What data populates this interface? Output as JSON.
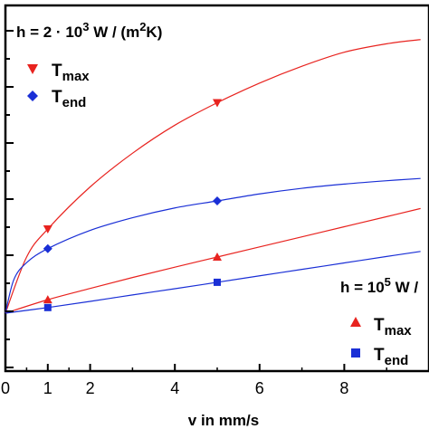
{
  "chart_data": {
    "type": "line",
    "xlabel": "v in mm/s",
    "ylabel": "",
    "xlim": [
      0,
      10
    ],
    "ylim": [
      0,
      10
    ],
    "x_ticks": [
      "0",
      "1",
      "2",
      "4",
      "6",
      "8"
    ],
    "x_tick_values": [
      0,
      1,
      2,
      4,
      6,
      8
    ],
    "y_tick_values": [
      0,
      1.9,
      3.9,
      5.9,
      7.9,
      9.8
    ],
    "annotations": {
      "case_top": {
        "prefix": "h = 2 · 10",
        "exponent": "3",
        "suffix": " W / (m",
        "suffix_exp": "2",
        "suffix_end": "K)"
      },
      "case_bottom": {
        "prefix": "h = 10",
        "exponent": "5",
        "suffix": " W /"
      }
    },
    "legends": [
      {
        "entries": [
          {
            "name_main": "T",
            "name_sub": "max",
            "marker": "triangle-down",
            "color": "#e8231f"
          },
          {
            "name_main": "T",
            "name_sub": "end",
            "marker": "diamond",
            "color": "#1a2fd6"
          }
        ]
      },
      {
        "entries": [
          {
            "name_main": "T",
            "name_sub": "max",
            "marker": "triangle-up",
            "color": "#e8231f"
          },
          {
            "name_main": "T",
            "name_sub": "end",
            "marker": "square",
            "color": "#1a2fd6"
          }
        ]
      }
    ],
    "series": [
      {
        "group": "h = 2·10^3",
        "legend": "Tmax",
        "color": "#e8231f",
        "marker": "triangle-down",
        "points": [
          {
            "x": 0,
            "y": 0
          },
          {
            "x": 1,
            "y": 3.0
          },
          {
            "x": 5,
            "y": 7.5
          }
        ],
        "curve": [
          {
            "x": 0,
            "y": 0
          },
          {
            "x": 0.5,
            "y": 2.0
          },
          {
            "x": 1,
            "y": 3.0
          },
          {
            "x": 2,
            "y": 4.5
          },
          {
            "x": 3,
            "y": 5.7
          },
          {
            "x": 4,
            "y": 6.7
          },
          {
            "x": 5,
            "y": 7.5
          },
          {
            "x": 6,
            "y": 8.2
          },
          {
            "x": 7,
            "y": 8.8
          },
          {
            "x": 8,
            "y": 9.3
          },
          {
            "x": 9,
            "y": 9.6
          },
          {
            "x": 9.8,
            "y": 9.75
          }
        ]
      },
      {
        "group": "h = 2·10^3",
        "legend": "Tend",
        "color": "#1a2fd6",
        "marker": "diamond",
        "points": [
          {
            "x": 0,
            "y": 0
          },
          {
            "x": 1,
            "y": 2.3
          },
          {
            "x": 5,
            "y": 4.0
          }
        ],
        "curve": [
          {
            "x": 0,
            "y": 0
          },
          {
            "x": 0.2,
            "y": 1.2
          },
          {
            "x": 0.5,
            "y": 1.8
          },
          {
            "x": 1,
            "y": 2.3
          },
          {
            "x": 2,
            "y": 2.95
          },
          {
            "x": 3,
            "y": 3.4
          },
          {
            "x": 4,
            "y": 3.75
          },
          {
            "x": 5,
            "y": 4.0
          },
          {
            "x": 6,
            "y": 4.25
          },
          {
            "x": 7,
            "y": 4.45
          },
          {
            "x": 8,
            "y": 4.6
          },
          {
            "x": 9,
            "y": 4.72
          },
          {
            "x": 9.8,
            "y": 4.8
          }
        ]
      },
      {
        "group": "h = 10^5",
        "legend": "Tmax",
        "color": "#e8231f",
        "marker": "triangle-up",
        "points": [
          {
            "x": 0,
            "y": 0
          },
          {
            "x": 1,
            "y": 0.48
          },
          {
            "x": 5,
            "y": 2.0
          }
        ],
        "curve": [
          {
            "x": 0,
            "y": 0
          },
          {
            "x": 1,
            "y": 0.48
          },
          {
            "x": 2,
            "y": 0.88
          },
          {
            "x": 3,
            "y": 1.27
          },
          {
            "x": 4,
            "y": 1.64
          },
          {
            "x": 5,
            "y": 2.0
          },
          {
            "x": 6,
            "y": 2.36
          },
          {
            "x": 7,
            "y": 2.72
          },
          {
            "x": 8,
            "y": 3.08
          },
          {
            "x": 9,
            "y": 3.44
          },
          {
            "x": 9.8,
            "y": 3.73
          }
        ]
      },
      {
        "group": "h = 10^5",
        "legend": "Tend",
        "color": "#1a2fd6",
        "marker": "square",
        "points": [
          {
            "x": 0,
            "y": 0
          },
          {
            "x": 1,
            "y": 0.2
          },
          {
            "x": 5,
            "y": 1.1
          }
        ],
        "curve": [
          {
            "x": 0,
            "y": 0
          },
          {
            "x": 1,
            "y": 0.2
          },
          {
            "x": 2,
            "y": 0.42
          },
          {
            "x": 3,
            "y": 0.65
          },
          {
            "x": 4,
            "y": 0.87
          },
          {
            "x": 5,
            "y": 1.1
          },
          {
            "x": 6,
            "y": 1.33
          },
          {
            "x": 7,
            "y": 1.56
          },
          {
            "x": 8,
            "y": 1.79
          },
          {
            "x": 9,
            "y": 2.02
          },
          {
            "x": 9.8,
            "y": 2.2
          }
        ]
      }
    ]
  }
}
